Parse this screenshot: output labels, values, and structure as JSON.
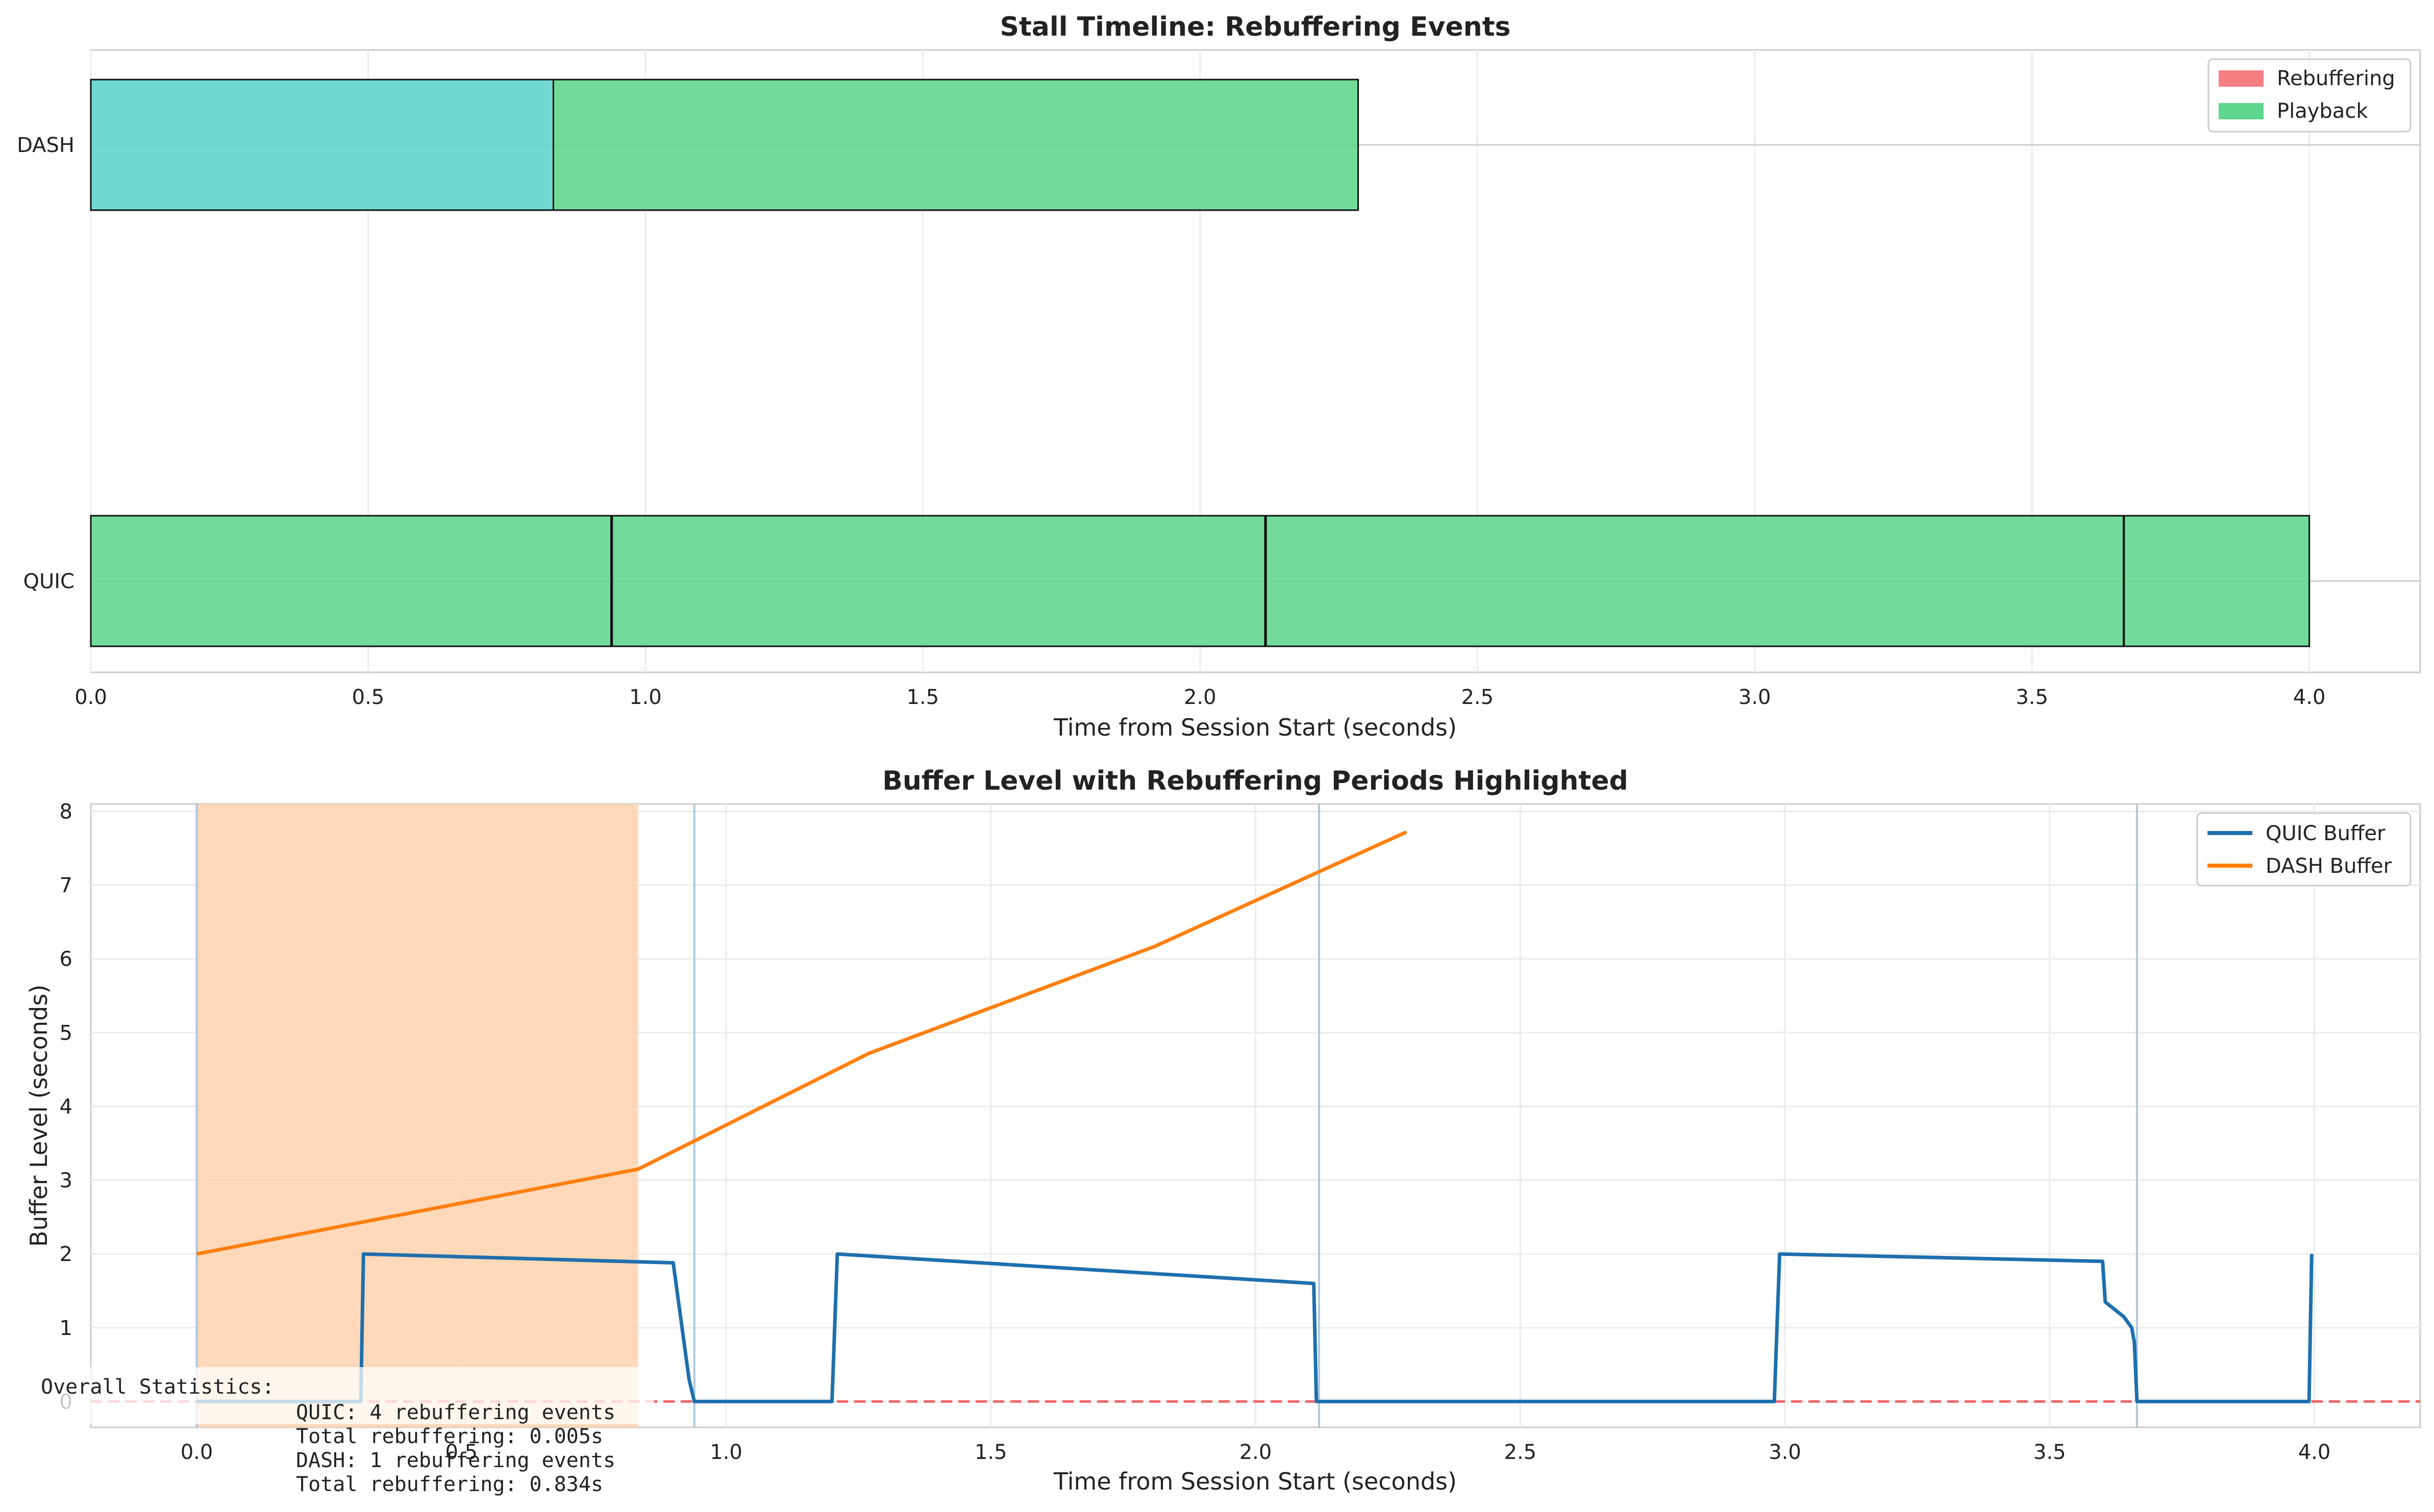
{
  "chart_data": [
    {
      "type": "bar",
      "subtype": "horizontal-timeline",
      "title": "Stall Timeline: Rebuffering Events",
      "xlabel": "Time from Session Start (seconds)",
      "ylabel": "",
      "xlim": [
        0.0,
        4.2
      ],
      "xticks": [
        "0.0",
        "0.5",
        "1.0",
        "1.5",
        "2.0",
        "2.5",
        "3.0",
        "3.5",
        "4.0"
      ],
      "categories": [
        "DASH",
        "QUIC"
      ],
      "grid": true,
      "legend_position": "top-right",
      "legend": [
        {
          "name": "Rebuffering",
          "color": "#f47e82"
        },
        {
          "name": "Playback",
          "color": "#5fd68d"
        }
      ],
      "segments": {
        "DASH": [
          {
            "start": 0.0,
            "end": 0.834,
            "color": "#5fd3cd"
          },
          {
            "start": 0.834,
            "end": 2.285,
            "color": "#5fd68d"
          }
        ],
        "QUIC": [
          {
            "start": 0.0,
            "end": 0.938,
            "color": "#5fd68d"
          },
          {
            "start": 0.938,
            "end": 0.94,
            "color": "#f47e82"
          },
          {
            "start": 0.94,
            "end": 2.117,
            "color": "#5fd68d"
          },
          {
            "start": 2.117,
            "end": 2.119,
            "color": "#f47e82"
          },
          {
            "start": 2.119,
            "end": 3.665,
            "color": "#5fd68d"
          },
          {
            "start": 3.665,
            "end": 3.666,
            "color": "#f47e82"
          },
          {
            "start": 3.666,
            "end": 4.0,
            "color": "#5fd68d"
          }
        ]
      }
    },
    {
      "type": "line",
      "title": "Buffer Level with Rebuffering Periods Highlighted",
      "xlabel": "Time from Session Start (seconds)",
      "ylabel": "Buffer Level (seconds)",
      "xlim": [
        -0.2,
        4.2
      ],
      "ylim": [
        -0.35,
        8.1
      ],
      "xticks": [
        "0.0",
        "0.5",
        "1.0",
        "1.5",
        "2.0",
        "2.5",
        "3.0",
        "3.5",
        "4.0"
      ],
      "yticks": [
        "0",
        "1",
        "2",
        "3",
        "4",
        "5",
        "6",
        "7",
        "8"
      ],
      "grid": true,
      "legend_position": "top-right",
      "series": [
        {
          "name": "QUIC Buffer",
          "color": "#1f6fad",
          "x": [
            0.0,
            0.31,
            0.315,
            0.9,
            0.93,
            0.94,
            1.2,
            1.21,
            2.11,
            2.115,
            2.98,
            2.99,
            3.6,
            3.605,
            3.64,
            3.655,
            3.66,
            3.665,
            3.99,
            3.995
          ],
          "y": [
            0.0,
            0.0,
            2.0,
            1.88,
            0.3,
            0.0,
            0.0,
            2.0,
            1.6,
            0.0,
            0.0,
            2.0,
            1.9,
            1.35,
            1.15,
            1.0,
            0.8,
            0.0,
            0.0,
            2.0
          ]
        },
        {
          "name": "DASH Buffer",
          "color": "#ff7f0e",
          "x": [
            0.0,
            0.834,
            1.27,
            1.81,
            2.285
          ],
          "y": [
            2.0,
            3.15,
            4.72,
            6.17,
            7.72
          ]
        }
      ],
      "reference_line": {
        "y": 0.0,
        "color": "#f05a5a",
        "style": "dashed"
      },
      "highlight_spans": [
        {
          "start": 0.0,
          "end": 0.834,
          "color": "#ffd2ae"
        }
      ],
      "event_lines": [
        0.0,
        0.94,
        2.12,
        3.665
      ],
      "annotation": {
        "heading": "Overall Statistics:",
        "lines": [
          "QUIC: 4 rebuffering events",
          "Total rebuffering: 0.005s",
          "DASH: 1 rebuffering events",
          "Total rebuffering: 0.834s"
        ]
      }
    }
  ]
}
